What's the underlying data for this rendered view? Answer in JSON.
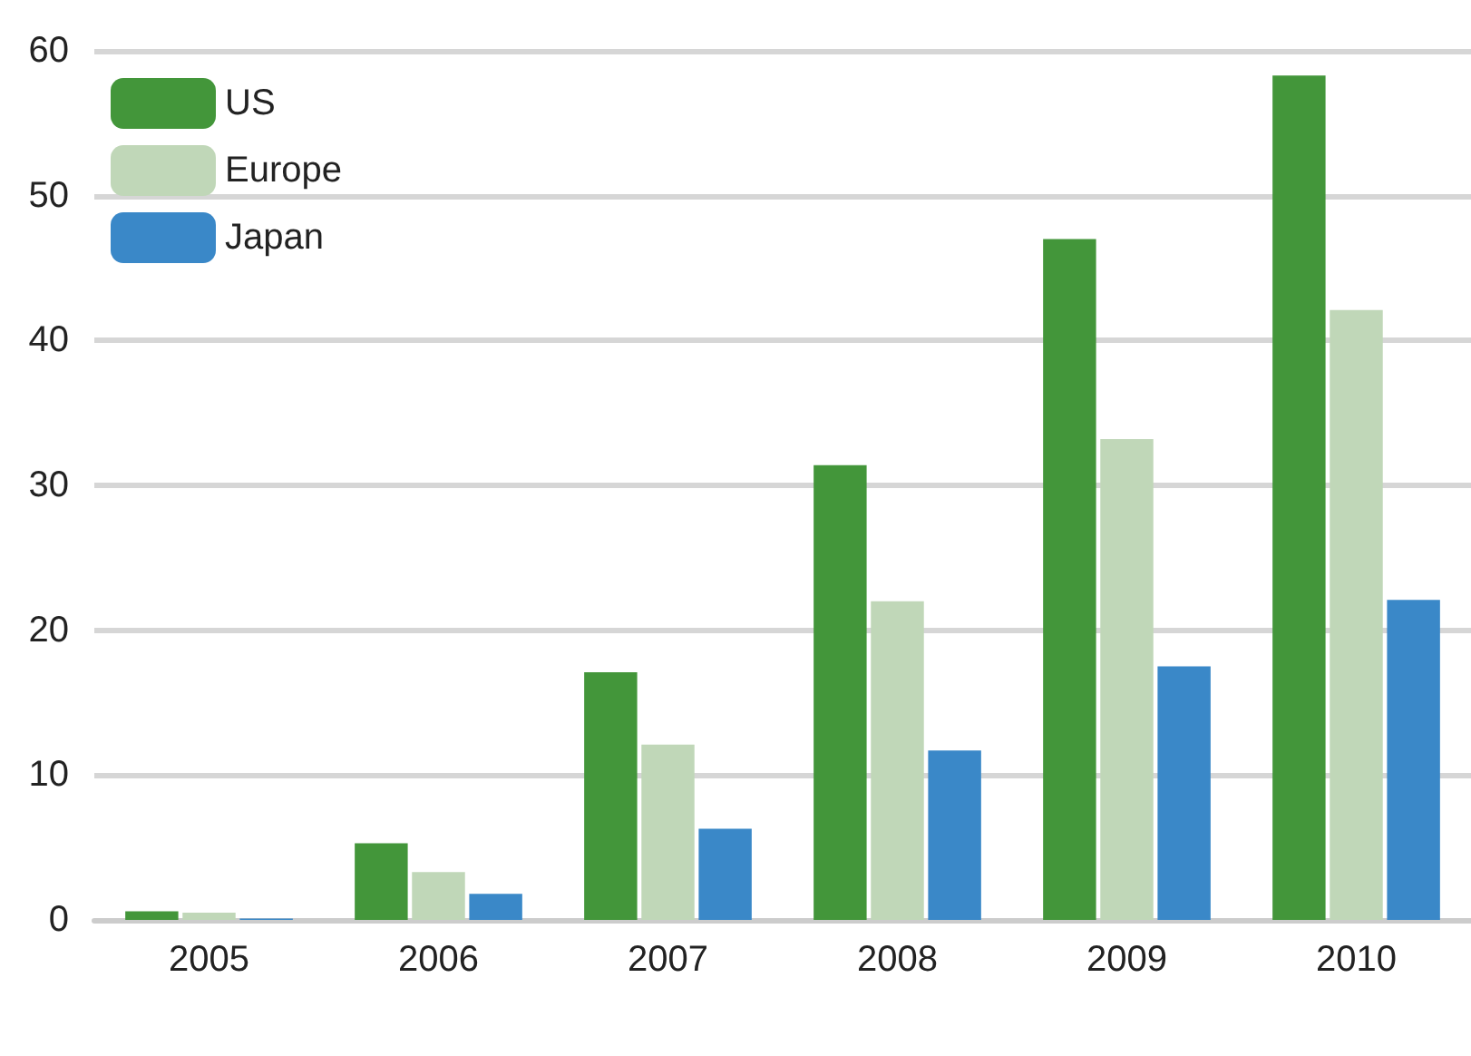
{
  "chart_data": {
    "type": "bar",
    "categories": [
      "2005",
      "2006",
      "2007",
      "2008",
      "2009",
      "2010"
    ],
    "series": [
      {
        "name": "US",
        "color": "#43963a",
        "values": [
          0.6,
          5.3,
          17.1,
          31.4,
          47.0,
          58.3
        ]
      },
      {
        "name": "Europe",
        "color": "#c0d7b8",
        "values": [
          0.5,
          3.3,
          12.1,
          22.0,
          33.2,
          42.1
        ]
      },
      {
        "name": "Japan",
        "color": "#3a88c8",
        "values": [
          0.1,
          1.8,
          6.3,
          11.7,
          17.5,
          22.1
        ]
      }
    ],
    "ylim": [
      0,
      60
    ],
    "yticks": [
      0,
      10,
      20,
      30,
      40,
      50,
      60
    ],
    "grid": "y",
    "legend": "top left"
  }
}
